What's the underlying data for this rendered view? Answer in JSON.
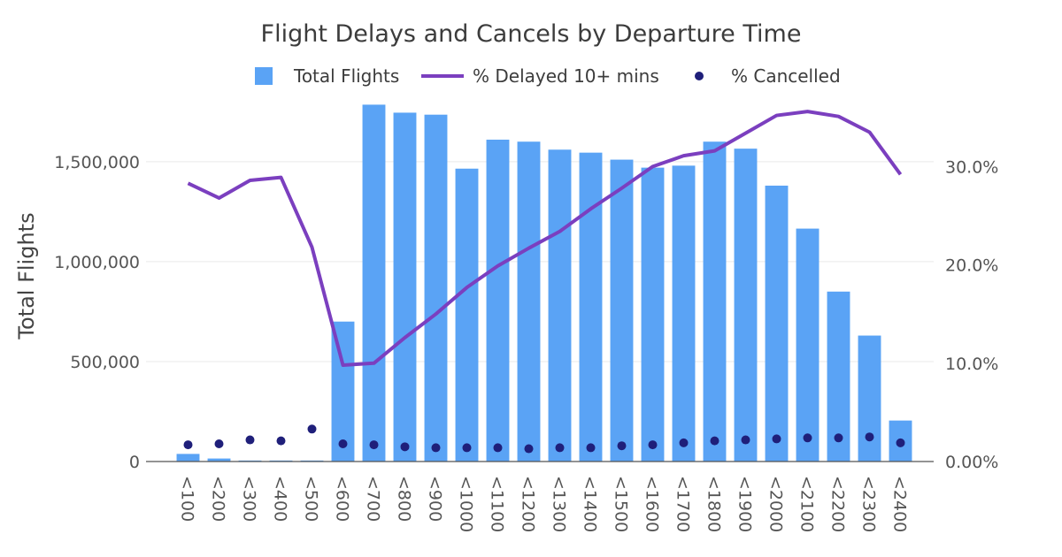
{
  "chart_data": {
    "type": "bar",
    "title": "Flight Delays and Cancels by Departure Time",
    "ylabel": "Total Flights",
    "y2label": "",
    "categories": [
      "<100",
      "<200",
      "<300",
      "<400",
      "<500",
      "<600",
      "<700",
      "<800",
      "<900",
      "<1000",
      "<1100",
      "<1200",
      "<1300",
      "<1400",
      "<1500",
      "<1600",
      "<1700",
      "<1800",
      "<1900",
      "<2000",
      "<2100",
      "<2200",
      "<2300",
      "<2400"
    ],
    "ylim": [
      0,
      1800000
    ],
    "y2lim": [
      0,
      36.6
    ],
    "y_ticks": [
      0,
      500000,
      1000000,
      1500000
    ],
    "y_tick_labels": [
      "0",
      "500,000",
      "1,000,000",
      "1,500,000"
    ],
    "y2_ticks": [
      0,
      10,
      20,
      30
    ],
    "y2_tick_labels": [
      "0.00%",
      "10.0%",
      "20.0%",
      "30.0%"
    ],
    "grid": true,
    "legend_position": "top-center",
    "series": [
      {
        "name": "Total Flights",
        "kind": "bar",
        "axis": "left",
        "color": "#5aa3f5",
        "values": [
          38000,
          15000,
          5000,
          5000,
          5000,
          700000,
          1785000,
          1745000,
          1735000,
          1465000,
          1610000,
          1600000,
          1560000,
          1545000,
          1510000,
          1470000,
          1480000,
          1600000,
          1565000,
          1380000,
          1165000,
          850000,
          630000,
          205000
        ]
      },
      {
        "name": "% Delayed 10+ mins",
        "kind": "line",
        "axis": "right",
        "color": "#7b3fbf",
        "values": [
          28.3,
          26.8,
          28.6,
          28.9,
          21.8,
          9.8,
          10.0,
          12.6,
          15.0,
          17.7,
          19.9,
          21.7,
          23.4,
          25.7,
          27.8,
          30.0,
          31.1,
          31.6,
          33.4,
          35.2,
          35.6,
          35.1,
          33.5,
          29.2
        ]
      },
      {
        "name": "% Cancelled",
        "kind": "scatter",
        "axis": "right",
        "color": "#1f1f7a",
        "values": [
          1.7,
          1.8,
          2.2,
          2.1,
          3.3,
          1.8,
          1.7,
          1.5,
          1.4,
          1.4,
          1.4,
          1.3,
          1.4,
          1.4,
          1.6,
          1.7,
          1.9,
          2.1,
          2.2,
          2.3,
          2.4,
          2.4,
          2.5,
          1.9
        ]
      }
    ]
  }
}
